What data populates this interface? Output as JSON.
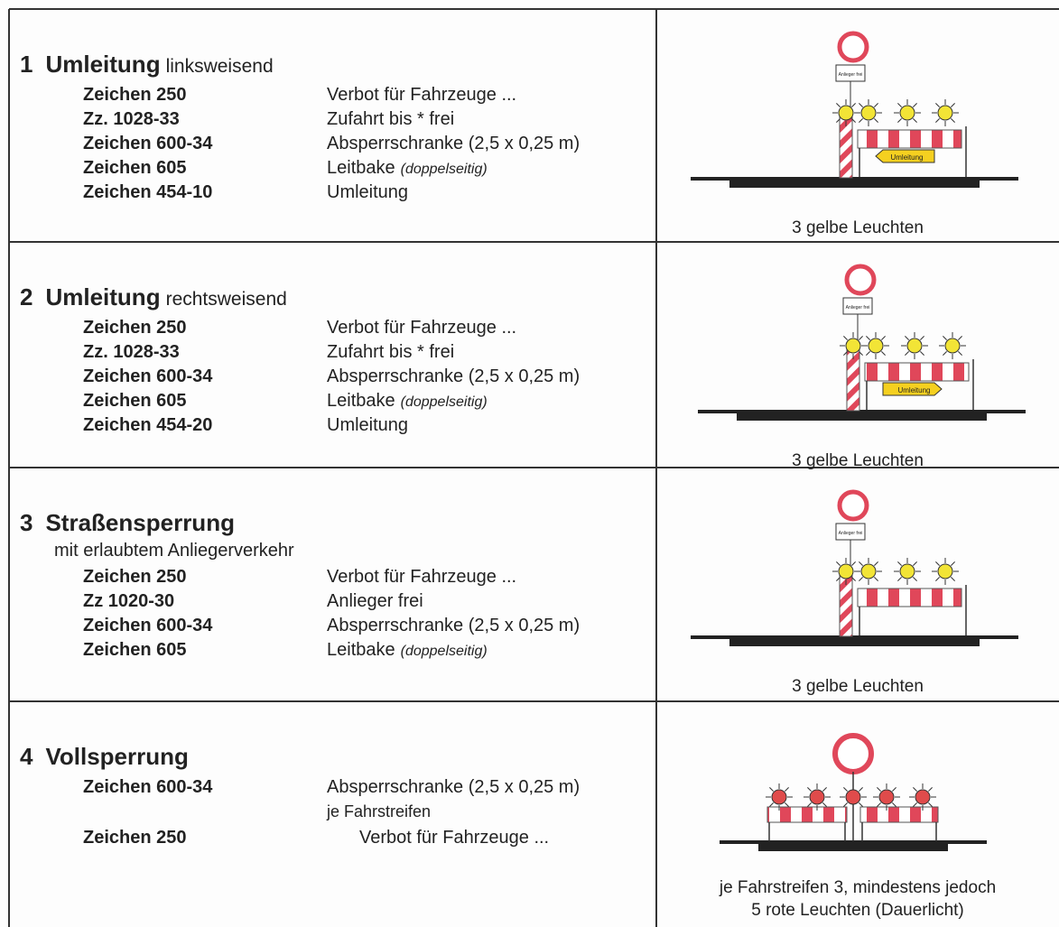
{
  "rows": [
    {
      "number": "1",
      "title": "Umleitung",
      "title_suffix": "linksweisend",
      "items": [
        {
          "code": "Zeichen 250",
          "desc": "Verbot für Fahrzeuge ..."
        },
        {
          "code": "Zz. 1028-33",
          "desc": "Zufahrt bis * frei"
        },
        {
          "code": "Zeichen 600-34",
          "desc": "Absperrschranke (2,5 x 0,25 m)"
        },
        {
          "code": "Zeichen 605",
          "desc": "Leitbake",
          "note": "(doppelseitig)"
        },
        {
          "code": "Zeichen 454-10",
          "desc": "Umleitung"
        }
      ],
      "sign_label": "Anlieger frei",
      "arrow_label": "Umleitung",
      "caption": [
        "3 gelbe Leuchten"
      ]
    },
    {
      "number": "2",
      "title": "Umleitung",
      "title_suffix": "rechtsweisend",
      "items": [
        {
          "code": "Zeichen 250",
          "desc": "Verbot für Fahrzeuge ..."
        },
        {
          "code": "Zz. 1028-33",
          "desc": "Zufahrt bis * frei"
        },
        {
          "code": "Zeichen 600-34",
          "desc": "Absperrschranke (2,5 x 0,25 m)"
        },
        {
          "code": "Zeichen 605",
          "desc": "Leitbake",
          "note": "(doppelseitig)"
        },
        {
          "code": "Zeichen 454-20",
          "desc": "Umleitung"
        }
      ],
      "sign_label": "Anlieger frei",
      "arrow_label": "Umleitung",
      "caption": [
        "3 gelbe Leuchten"
      ]
    },
    {
      "number": "3",
      "title": "Straßensperrung",
      "subtitle": "mit erlaubtem Anliegerverkehr",
      "items": [
        {
          "code": "Zeichen 250",
          "desc": "Verbot für Fahrzeuge ..."
        },
        {
          "code": "Zz 1020-30",
          "desc": "Anlieger frei"
        },
        {
          "code": "Zeichen 600-34",
          "desc": "Absperrschranke (2,5 x 0,25 m)"
        },
        {
          "code": "Zeichen 605",
          "desc": "Leitbake",
          "note": "(doppelseitig)"
        }
      ],
      "sign_label": "Anlieger frei",
      "caption": [
        "3 gelbe Leuchten"
      ]
    },
    {
      "number": "4",
      "title": "Vollsperrung",
      "items": [
        {
          "code": "Zeichen 600-34",
          "desc": "Absperrschranke (2,5 x 0,25 m)",
          "desc_line2": "je Fahrstreifen"
        },
        {
          "code": "Zeichen 250",
          "desc": "Verbot für Fahrzeuge ..."
        }
      ],
      "caption": [
        "je Fahrstreifen 3, mindestens jedoch",
        "5 rote Leuchten (Dauerlicht)"
      ]
    }
  ]
}
